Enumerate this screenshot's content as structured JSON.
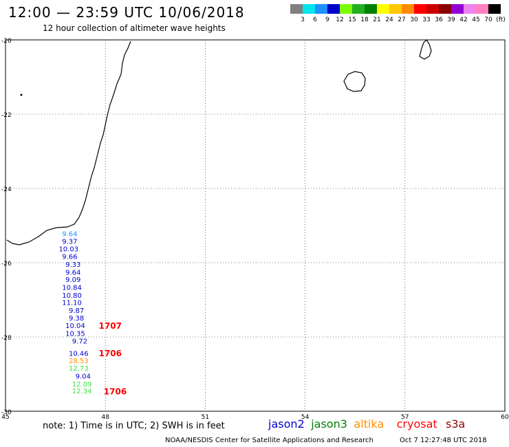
{
  "header": {
    "title": "12:00 — 23:59 UTC 10/06/2018",
    "subtitle": "12 hour collection of altimeter wave heights"
  },
  "legend": {
    "colors": [
      "#808080",
      "#00e5ee",
      "#1e90ff",
      "#0000cd",
      "#7cfc00",
      "#22b022",
      "#008000",
      "#ffff00",
      "#ffc800",
      "#ff8c00",
      "#ff0000",
      "#cc0000",
      "#8b0000",
      "#9400d3",
      "#ee82ee",
      "#ff80c0",
      "#000000"
    ],
    "labels": [
      "3",
      "6",
      "9",
      "12",
      "15",
      "18",
      "21",
      "24",
      "27",
      "30",
      "33",
      "36",
      "39",
      "42",
      "45",
      "70",
      "(ft)"
    ]
  },
  "map": {
    "lon_ticks": [
      "45",
      "48",
      "51",
      "54",
      "57",
      "60"
    ],
    "lat_ticks": [
      "-20",
      "-22",
      "-24",
      "-26",
      "-28",
      "-30"
    ],
    "lon_range": [
      45,
      60
    ],
    "lat_range": [
      -20,
      -30
    ],
    "grid": true
  },
  "observations": [
    {
      "text": "9.64",
      "color": "#1e90ff",
      "lon": 46.7,
      "lat": -25.29
    },
    {
      "text": "9.37",
      "color": "#0000cd",
      "lon": 46.7,
      "lat": -25.49
    },
    {
      "text": "10.03",
      "color": "#0000cd",
      "lon": 46.6,
      "lat": -25.69
    },
    {
      "text": "9.66",
      "color": "#0000cd",
      "lon": 46.7,
      "lat": -25.9
    },
    {
      "text": "9.33",
      "color": "#0000cd",
      "lon": 46.8,
      "lat": -26.11
    },
    {
      "text": "9.64",
      "color": "#0000cd",
      "lon": 46.8,
      "lat": -26.32
    },
    {
      "text": "9.09",
      "color": "#0000cd",
      "lon": 46.8,
      "lat": -26.52
    },
    {
      "text": "10.84",
      "color": "#0000cd",
      "lon": 46.7,
      "lat": -26.73
    },
    {
      "text": "10.80",
      "color": "#0000cd",
      "lon": 46.7,
      "lat": -26.94
    },
    {
      "text": "11.10",
      "color": "#0000cd",
      "lon": 46.7,
      "lat": -27.14
    },
    {
      "text": "9.87",
      "color": "#0000cd",
      "lon": 46.9,
      "lat": -27.35
    },
    {
      "text": "9.38",
      "color": "#0000cd",
      "lon": 46.9,
      "lat": -27.56
    },
    {
      "text": "10.04",
      "color": "#0000cd",
      "lon": 46.8,
      "lat": -27.76
    },
    {
      "text": "10.35",
      "color": "#0000cd",
      "lon": 46.8,
      "lat": -27.97
    },
    {
      "text": "9.72",
      "color": "#0000cd",
      "lon": 47.0,
      "lat": -28.18
    },
    {
      "text": "10.46",
      "color": "#0000cd",
      "lon": 46.9,
      "lat": -28.51
    },
    {
      "text": "28.53",
      "color": "#ff8c00",
      "lon": 46.9,
      "lat": -28.7
    },
    {
      "text": "12.73",
      "color": "#44dd44",
      "lon": 46.9,
      "lat": -28.91
    },
    {
      "text": "9.04",
      "color": "#0000cd",
      "lon": 47.1,
      "lat": -29.12
    },
    {
      "text": "12.09",
      "color": "#44dd44",
      "lon": 47.0,
      "lat": -29.33
    },
    {
      "text": "12.34",
      "color": "#44dd44",
      "lon": 47.0,
      "lat": -29.52
    }
  ],
  "time_labels": [
    {
      "text": "1707",
      "color": "#ff0000",
      "lon": 47.8,
      "lat": -27.78
    },
    {
      "text": "1706",
      "color": "#ff0000",
      "lon": 47.8,
      "lat": -28.52
    },
    {
      "text": "1706",
      "color": "#ff0000",
      "lon": 47.95,
      "lat": -29.55
    }
  ],
  "footer": {
    "note": "note:  1) Time is in UTC;  2) SWH is in feet",
    "satellites": [
      {
        "name": "jason2",
        "color": "#0000cd"
      },
      {
        "name": "jason3",
        "color": "#008000"
      },
      {
        "name": "altika",
        "color": "#ff8c00"
      },
      {
        "name": "cryosat",
        "color": "#ff0000"
      },
      {
        "name": "s3a",
        "color": "#8b0000"
      }
    ],
    "credit": "NOAA/NESDIS Center for Satellite Applications and Research",
    "timestamp": "Oct  7 12:27:48 UTC 2018"
  }
}
